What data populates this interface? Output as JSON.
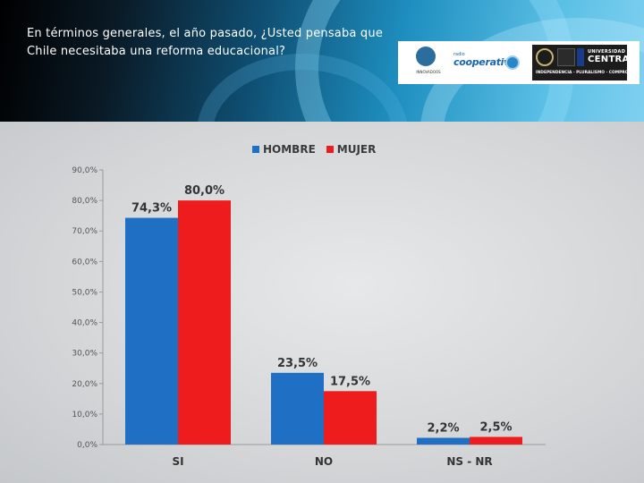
{
  "header": {
    "title": "En términos generales, el año pasado, ¿Usted pensaba que Chile necesitaba una reforma educacional?"
  },
  "logos": {
    "inn_label": "INNOVADOOS",
    "coop_small": "radio",
    "coop_name": "cooperativa",
    "uc_line1": "UNIVERSIDAD",
    "uc_line2": "CENTRAL",
    "uc_motto": "INDEPENDENCIA · PLURALISMO · COMPROMISO"
  },
  "colors": {
    "hombre": "#1f6fc4",
    "mujer": "#ee1c1c"
  },
  "chart_data": {
    "type": "bar",
    "categories": [
      "SI",
      "NO",
      "NS - NR"
    ],
    "series": [
      {
        "name": "HOMBRE",
        "values": [
          74.3,
          23.5,
          2.2
        ],
        "labels": [
          "74,3%",
          "23,5%",
          "2,2%"
        ]
      },
      {
        "name": "MUJER",
        "values": [
          80.0,
          17.5,
          2.5
        ],
        "labels": [
          "80,0%",
          "17,5%",
          "2,5%"
        ]
      }
    ],
    "ylim": [
      0,
      90
    ],
    "yticks": [
      {
        "v": 0,
        "label": "0,0%"
      },
      {
        "v": 10,
        "label": "10,0%"
      },
      {
        "v": 20,
        "label": "20,0%"
      },
      {
        "v": 30,
        "label": "30,0%"
      },
      {
        "v": 40,
        "label": "40,0%"
      },
      {
        "v": 50,
        "label": "50,0%"
      },
      {
        "v": 60,
        "label": "60,0%"
      },
      {
        "v": 70,
        "label": "70,0%"
      },
      {
        "v": 80,
        "label": "80,0%"
      },
      {
        "v": 90,
        "label": "90,0%"
      }
    ],
    "legend_position": "top",
    "grid": false
  }
}
